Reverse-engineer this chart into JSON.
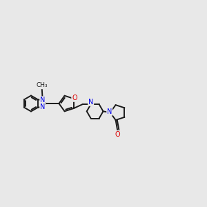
{
  "background_color": "#e8e8e8",
  "bond_color": "#1a1a1a",
  "N_color": "#0000ee",
  "O_color": "#dd0000",
  "line_width": 1.4,
  "figsize": [
    3.0,
    3.0
  ],
  "dpi": 100,
  "xlim": [
    -4.5,
    10.5
  ],
  "ylim": [
    -3.5,
    4.5
  ]
}
